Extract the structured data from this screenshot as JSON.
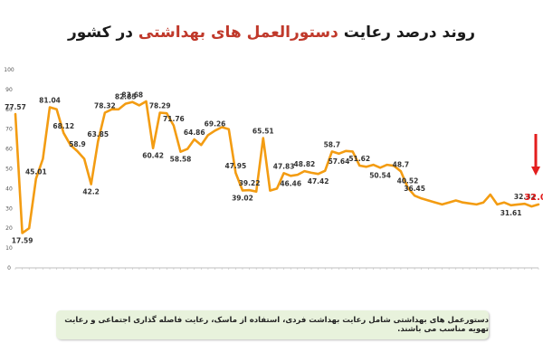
{
  "title": {
    "part1": "روند درصد رعایت ",
    "highlight": "دستورالعمل های بهداشتی",
    "part2": " در کشور"
  },
  "note": "دستورعمل های بهداشتی شامل رعایت بهداشت فردی، استفاده از ماسک، رعایت فاصله گذاری اجتماعی و رعایت تهویه مناسب می باشند.",
  "colors": {
    "line": "#f39c12",
    "highlight": "#c0392b",
    "final_label": "#e31e1e",
    "arrow": "#e31e1e"
  },
  "chart_data": {
    "type": "line",
    "title": "",
    "xlabel": "",
    "ylabel": "",
    "ylim": [
      0,
      100
    ],
    "yticks": [
      0,
      10,
      20,
      30,
      40,
      50,
      60,
      70,
      80,
      90,
      100
    ],
    "grid": false,
    "legend": "none",
    "series": [
      {
        "values": [
          77.57,
          17.59,
          20,
          45.01,
          55,
          81.04,
          80,
          68.12,
          62,
          58.9,
          55,
          42.2,
          63.85,
          78.32,
          80,
          80,
          82.85,
          83.68,
          82,
          84,
          60.42,
          78.29,
          78,
          71.76,
          58.58,
          60,
          64.86,
          62,
          67,
          69.26,
          71,
          70,
          47.95,
          39.02,
          39.22,
          38.5,
          65.51,
          39,
          40,
          47.83,
          46.46,
          47,
          48.82,
          48,
          47.42,
          49,
          58.7,
          57.64,
          59,
          58.7,
          51.62,
          51,
          52,
          50.54,
          52,
          51.5,
          48.7,
          40.52,
          36.45,
          35,
          34,
          33,
          32,
          33,
          34,
          33,
          32.5,
          32,
          33,
          37,
          32,
          33,
          31.61,
          32,
          32.32,
          31,
          32.01
        ]
      }
    ],
    "data_labels": [
      {
        "i": 0,
        "text": "77.57"
      },
      {
        "i": 1,
        "text": "17.59"
      },
      {
        "i": 3,
        "text": "45.01"
      },
      {
        "i": 5,
        "text": "81.04"
      },
      {
        "i": 7,
        "text": "68.12"
      },
      {
        "i": 9,
        "text": "58.9"
      },
      {
        "i": 11,
        "text": "42.2"
      },
      {
        "i": 12,
        "text": "63.85"
      },
      {
        "i": 13,
        "text": "78.32"
      },
      {
        "i": 16,
        "text": "82.85"
      },
      {
        "i": 17,
        "text": "83.68"
      },
      {
        "i": 20,
        "text": "60.42"
      },
      {
        "i": 21,
        "text": "78.29"
      },
      {
        "i": 23,
        "text": "71.76"
      },
      {
        "i": 24,
        "text": "58.58"
      },
      {
        "i": 26,
        "text": "64.86"
      },
      {
        "i": 29,
        "text": "69.26"
      },
      {
        "i": 32,
        "text": "47.95"
      },
      {
        "i": 33,
        "text": "39.02"
      },
      {
        "i": 34,
        "text": "39.22"
      },
      {
        "i": 36,
        "text": "65.51"
      },
      {
        "i": 39,
        "text": "47.83"
      },
      {
        "i": 40,
        "text": "46.46"
      },
      {
        "i": 42,
        "text": "48.82"
      },
      {
        "i": 44,
        "text": "47.42"
      },
      {
        "i": 46,
        "text": "58.7"
      },
      {
        "i": 47,
        "text": "57.64"
      },
      {
        "i": 50,
        "text": "51.62"
      },
      {
        "i": 53,
        "text": "50.54"
      },
      {
        "i": 56,
        "text": "48.7"
      },
      {
        "i": 57,
        "text": "40.52"
      },
      {
        "i": 58,
        "text": "36.45"
      },
      {
        "i": 72,
        "text": "31.61"
      },
      {
        "i": 74,
        "text": "32.32"
      },
      {
        "i": 76,
        "text": "32.01",
        "final": true
      }
    ]
  }
}
